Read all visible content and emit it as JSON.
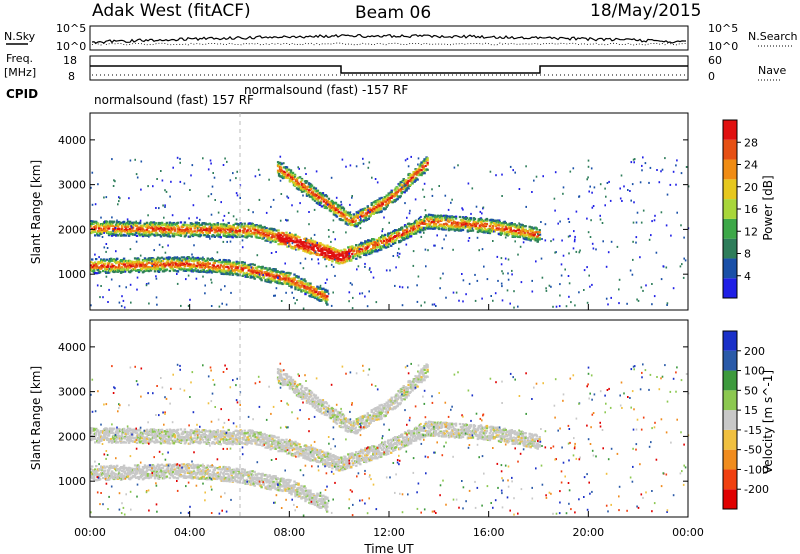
{
  "header": {
    "station": "Adak West (fitACF)",
    "beam": "Beam 06",
    "date": "18/May/2015"
  },
  "labels": {
    "nsky": "N.Sky",
    "nsearch": "N.Search",
    "freq_line1": "Freq.",
    "freq_line2": "[MHz]",
    "nave": "Nave",
    "cpid": "CPID",
    "cpid_1": "normalsound (fast) 157 RF",
    "cpid_2": "normalsound (fast) -157 RF"
  },
  "noise_axis": {
    "top": "10^5",
    "bottom": "10^0"
  },
  "freq_axis": {
    "top": "18",
    "bottom": "8"
  },
  "nave_axis": {
    "top": "60",
    "bottom": "0"
  },
  "colors": {
    "power": [
      "#2020e6",
      "#1a50a8",
      "#2e7d5a",
      "#3da848",
      "#a8d63a",
      "#e6c81e",
      "#f08c14",
      "#e65014",
      "#e01010"
    ],
    "velocity": [
      "#e00000",
      "#f04010",
      "#f08c1e",
      "#f0c040",
      "#c8c8c8",
      "#8cc850",
      "#3d9a3d",
      "#2a5aa8",
      "#1a30c8"
    ]
  },
  "chart_data": [
    {
      "type": "heatmap",
      "panel": "power",
      "ylabel": "Slant Range [km]",
      "colorbar_label": "Power [dB]",
      "colorbar_ticks": [
        "4",
        "8",
        "12",
        "16",
        "20",
        "24",
        "28"
      ],
      "y_ticks": [
        "1000",
        "2000",
        "3000",
        "4000"
      ],
      "ylim": [
        200,
        4600
      ],
      "xlim": [
        0,
        24
      ],
      "features": [
        {
          "name": "Band near 2000 km",
          "x": [
            0,
            6.5,
            8.5,
            10,
            12,
            13.5,
            16,
            18
          ],
          "y": [
            2050,
            2000,
            1700,
            1400,
            1800,
            2200,
            2100,
            1900
          ]
        },
        {
          "name": "Band near 1200 km",
          "x": [
            0,
            4,
            6,
            8,
            9.5
          ],
          "y": [
            1200,
            1250,
            1150,
            900,
            500
          ]
        },
        {
          "name": "Upper band",
          "x": [
            7.5,
            9.5,
            10.5,
            12,
            13.5
          ],
          "y": [
            3400,
            2600,
            2200,
            2700,
            3500
          ]
        }
      ]
    },
    {
      "type": "heatmap",
      "panel": "velocity",
      "ylabel": "Slant Range [km]",
      "xlabel": "Time UT",
      "colorbar_label": "Velocity [m s^-1]",
      "colorbar_ticks": [
        "-200",
        "-100",
        "-50",
        "-15",
        "15",
        "50",
        "100",
        "200"
      ],
      "x_ticks": [
        "00:00",
        "04:00",
        "08:00",
        "12:00",
        "16:00",
        "20:00",
        "00:00"
      ],
      "y_ticks": [
        "1000",
        "2000",
        "3000",
        "4000"
      ],
      "ylim": [
        200,
        4600
      ],
      "xlim": [
        0,
        24
      ]
    }
  ]
}
